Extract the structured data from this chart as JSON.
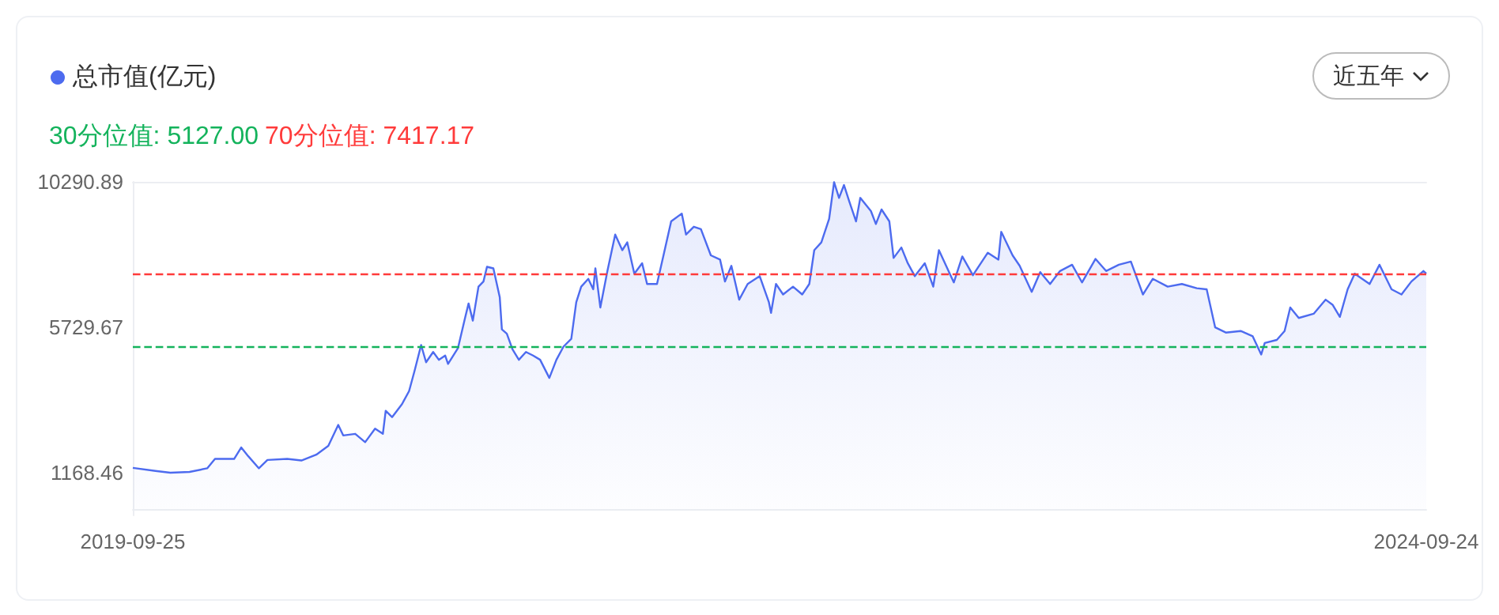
{
  "chart_data": {
    "type": "area",
    "legend": "top left",
    "grid": false,
    "marker": "none",
    "line_style": "solid",
    "tick_labels": true,
    "annotations": [
      "近五年"
    ],
    "xlim": [
      "2019-09-25",
      "2024-09-24"
    ],
    "xticks": [
      "2019-09-25",
      "2024-09-24"
    ],
    "ylim": [
      -170,
      10300
    ],
    "yticks": [
      1168.46,
      5729.67,
      10290.89
    ],
    "ref_lines": [
      {
        "axis": "y",
        "value": 5127.0,
        "label": "30分位值: 5127.00",
        "color": "#14b35c",
        "line_style": "dashed"
      },
      {
        "axis": "y",
        "value": 7417.17,
        "label": "70分位值: 7417.17",
        "color": "#ff3b3b",
        "line_style": "dashed"
      }
    ],
    "series": [
      {
        "name": "总市值(亿元)",
        "color": "#4d6bef",
        "x": [
          "2019-09-25",
          "2019-10-27",
          "2019-11-17",
          "2019-12-14",
          "2020-01-08",
          "2020-01-19",
          "2020-02-15",
          "2020-02-25",
          "2020-03-06",
          "2020-03-21",
          "2020-04-02",
          "2020-04-30",
          "2020-05-20",
          "2020-06-10",
          "2020-06-27",
          "2020-07-11",
          "2020-07-18",
          "2020-08-04",
          "2020-08-18",
          "2020-09-01",
          "2020-09-12",
          "2020-09-16",
          "2020-09-25",
          "2020-10-09",
          "2020-10-19",
          "2020-10-27",
          "2020-11-05",
          "2020-11-12",
          "2020-11-22",
          "2020-11-30",
          "2020-12-09",
          "2020-12-13",
          "2020-12-27",
          "2021-01-06",
          "2021-01-11",
          "2021-01-17",
          "2021-01-25",
          "2021-02-01",
          "2021-02-06",
          "2021-02-15",
          "2021-02-24",
          "2021-02-27",
          "2021-03-06",
          "2021-03-14",
          "2021-03-23",
          "2021-04-02",
          "2021-04-12",
          "2021-04-22",
          "2021-05-05",
          "2021-05-15",
          "2021-05-25",
          "2021-06-05",
          "2021-06-12",
          "2021-06-19",
          "2021-06-29",
          "2021-07-06",
          "2021-07-09",
          "2021-07-16",
          "2021-07-26",
          "2021-08-06",
          "2021-08-16",
          "2021-08-23",
          "2021-09-02",
          "2021-09-13",
          "2021-09-20",
          "2021-10-04",
          "2021-10-14",
          "2021-10-24",
          "2021-11-08",
          "2021-11-14",
          "2021-11-25",
          "2021-12-05",
          "2021-12-19",
          "2022-01-01",
          "2022-01-08",
          "2022-01-17",
          "2022-01-28",
          "2022-02-09",
          "2022-02-26",
          "2022-03-11",
          "2022-03-14",
          "2022-03-21",
          "2022-03-31",
          "2022-04-14",
          "2022-04-27",
          "2022-05-07",
          "2022-05-14",
          "2022-05-24",
          "2022-06-04",
          "2022-06-11",
          "2022-06-18",
          "2022-06-25",
          "2022-07-02",
          "2022-07-12",
          "2022-07-18",
          "2022-08-02",
          "2022-08-09",
          "2022-08-17",
          "2022-08-28",
          "2022-09-03",
          "2022-09-14",
          "2022-09-23",
          "2022-10-03",
          "2022-10-17",
          "2022-10-29",
          "2022-11-06",
          "2022-11-27",
          "2022-12-09",
          "2022-12-24",
          "2023-01-14",
          "2023-01-29",
          "2023-02-02",
          "2023-02-18",
          "2023-02-28",
          "2023-03-17",
          "2023-03-29",
          "2023-04-12",
          "2023-04-26",
          "2023-05-13",
          "2023-05-27",
          "2023-06-15",
          "2023-06-30",
          "2023-07-18",
          "2023-08-04",
          "2023-08-21",
          "2023-09-04",
          "2023-09-25",
          "2023-10-15",
          "2023-11-05",
          "2023-11-19",
          "2023-12-01",
          "2023-12-16",
          "2024-01-06",
          "2024-01-23",
          "2024-02-04",
          "2024-02-09",
          "2024-02-26",
          "2024-03-08",
          "2024-03-16",
          "2024-03-28",
          "2024-04-18",
          "2024-05-05",
          "2024-05-15",
          "2024-05-25",
          "2024-06-05",
          "2024-06-15",
          "2024-07-06",
          "2024-07-20",
          "2024-08-06",
          "2024-08-20",
          "2024-09-03",
          "2024-09-20",
          "2024-09-24"
        ],
        "values": [
          1323,
          1225,
          1168.46,
          1195,
          1308,
          1603,
          1603,
          1962,
          1687,
          1308,
          1569,
          1603,
          1554,
          1736,
          2011,
          2670,
          2340,
          2390,
          2129,
          2552,
          2390,
          3112,
          2915,
          3323,
          3731,
          4390,
          5176,
          4636,
          4960,
          4714,
          4847,
          4586,
          5078,
          6026,
          6483,
          5943,
          7009,
          7171,
          7633,
          7584,
          6680,
          5668,
          5535,
          5043,
          4714,
          4960,
          4847,
          4714,
          4144,
          4714,
          5127,
          5373,
          6518,
          7009,
          7255,
          6926,
          7584,
          6356,
          7501,
          8646,
          8154,
          8400,
          7417,
          7746,
          7093,
          7093,
          8076,
          9059,
          9304,
          8646,
          8891,
          8813,
          7992,
          7859,
          7171,
          7663,
          6601,
          7093,
          7339,
          6518,
          6188,
          7093,
          6764,
          7009,
          6764,
          7093,
          8154,
          8400,
          9137,
          10290.89,
          9796,
          10200,
          9712,
          9059,
          9796,
          9383,
          8975,
          9432,
          9059,
          7909,
          8238,
          7746,
          7339,
          7746,
          7009,
          8154,
          7142,
          7958,
          7368,
          8076,
          7859,
          8729,
          7992,
          7663,
          6847,
          7466,
          7093,
          7501,
          7697,
          7142,
          7879,
          7501,
          7697,
          7796,
          6764,
          7255,
          7009,
          7093,
          6960,
          6926,
          5731,
          5569,
          5618,
          5451,
          4881,
          5240,
          5338,
          5618,
          6356,
          6026,
          6159,
          6601,
          6434,
          6061,
          6926,
          7417,
          7093,
          7697,
          6926,
          6764,
          7171,
          7501,
          7417
        ]
      }
    ]
  }
}
